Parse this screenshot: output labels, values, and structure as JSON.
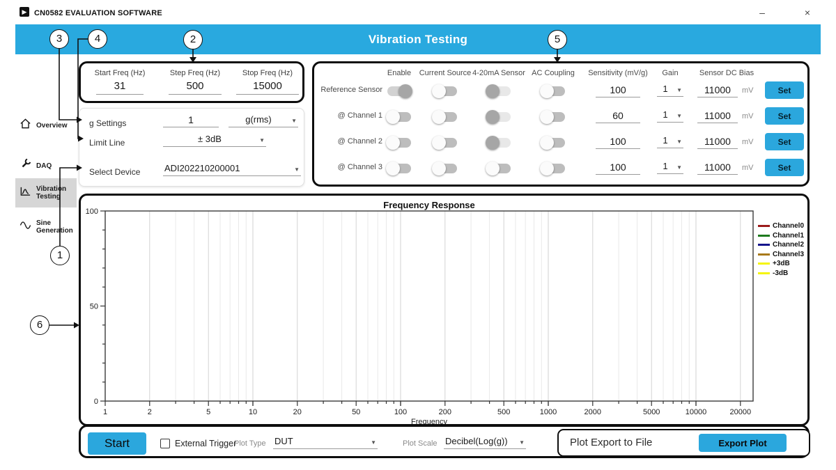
{
  "window": {
    "app_title": "CN0582 EVALUATION SOFTWARE"
  },
  "header": {
    "title": "Vibration Testing"
  },
  "colors": {
    "accent_blue": "#29A9DF",
    "sidebar_selected": "#D6D6D6",
    "panel_border": "#0d0d0d"
  },
  "icons": {
    "app_logo": "▶",
    "dropdown_arrow": "▼",
    "minimize": "–",
    "close": "×"
  },
  "sidebar": {
    "items": [
      {
        "label": "Overview",
        "icon": "home-icon",
        "selected": false
      },
      {
        "label": "DAQ",
        "icon": "wrench-icon",
        "selected": false
      },
      {
        "label": "Vibration Testing",
        "icon": "vibration-chart-icon",
        "selected": true
      },
      {
        "label": "Sine Generation",
        "icon": "sine-wave-icon",
        "selected": false
      }
    ]
  },
  "freq_panel": {
    "fields": [
      {
        "label": "Start Freq (Hz)",
        "value": "31"
      },
      {
        "label": "Step Freq (Hz)",
        "value": "500"
      },
      {
        "label": "Stop Freq (Hz)",
        "value": "15000"
      }
    ]
  },
  "settings_panel": {
    "g_settings": {
      "label": "g Settings",
      "value": "1",
      "unit": "g(rms)"
    },
    "limit_line": {
      "label": "Limit Line",
      "value": "± 3dB"
    },
    "select_device": {
      "label": "Select Device",
      "value": "ADI202210200001"
    }
  },
  "channel_panel": {
    "columns": [
      "Enable",
      "Current Source",
      "4-20mA Sensor",
      "AC Coupling",
      "Sensitivity (mV/g)",
      "Gain",
      "Sensor DC Bias"
    ],
    "bias_unit": "mV",
    "set_label": "Set",
    "rows": [
      {
        "label": "Reference Sensor",
        "enable": "on",
        "current_source": "off",
        "sensor_4_20": "on-left",
        "ac_coupling": "off",
        "sensitivity": "100",
        "gain": "1",
        "dc_bias": "11000"
      },
      {
        "label": "@ Channel 1",
        "enable": "off",
        "current_source": "off",
        "sensor_4_20": "on-left",
        "ac_coupling": "off",
        "sensitivity": "60",
        "gain": "1",
        "dc_bias": "11000"
      },
      {
        "label": "@ Channel 2",
        "enable": "off",
        "current_source": "off",
        "sensor_4_20": "on-left",
        "ac_coupling": "off",
        "sensitivity": "100",
        "gain": "1",
        "dc_bias": "11000"
      },
      {
        "label": "@ Channel 3",
        "enable": "off",
        "current_source": "off",
        "sensor_4_20": "off",
        "ac_coupling": "off",
        "sensitivity": "100",
        "gain": "1",
        "dc_bias": "11000"
      }
    ]
  },
  "chart": {
    "type": "line",
    "title": "Frequency Response",
    "xlabel": "Frequency",
    "x_scale": "log",
    "xlim": [
      1,
      24000
    ],
    "x_ticks": [
      1,
      2,
      5,
      10,
      20,
      50,
      100,
      200,
      500,
      1000,
      2000,
      5000,
      10000,
      20000
    ],
    "ylim": [
      0,
      100
    ],
    "y_ticks": [
      0,
      50,
      100
    ],
    "y_minor_step": 10,
    "grid": true,
    "legend_position": "right-outside",
    "series": [
      {
        "name": "Channel0",
        "color": "#9B1B1B",
        "values": []
      },
      {
        "name": "Channel1",
        "color": "#1E7A1E",
        "values": []
      },
      {
        "name": "Channel2",
        "color": "#14148C",
        "values": []
      },
      {
        "name": "Channel3",
        "color": "#A8791A",
        "values": []
      },
      {
        "name": "+3dB",
        "color": "#F5F50A",
        "values": []
      },
      {
        "name": "-3dB",
        "color": "#F5F50A",
        "values": []
      }
    ]
  },
  "bottom_bar": {
    "start_label": "Start",
    "external_trigger": {
      "label": "External Trigger",
      "checked": false
    },
    "plot_type": {
      "label": "Plot Type",
      "value": "DUT"
    },
    "plot_scale": {
      "label": "Plot Scale",
      "value": "Decibel(Log(g))"
    },
    "export": {
      "label": "Plot Export to File",
      "button_label": "Export Plot"
    }
  },
  "callouts": [
    {
      "number": "1",
      "target": "select-device"
    },
    {
      "number": "2",
      "target": "frequency-settings"
    },
    {
      "number": "3",
      "target": "g-settings"
    },
    {
      "number": "4",
      "target": "limit-line"
    },
    {
      "number": "5",
      "target": "channel-settings"
    },
    {
      "number": "6",
      "target": "frequency-response-plot"
    }
  ]
}
